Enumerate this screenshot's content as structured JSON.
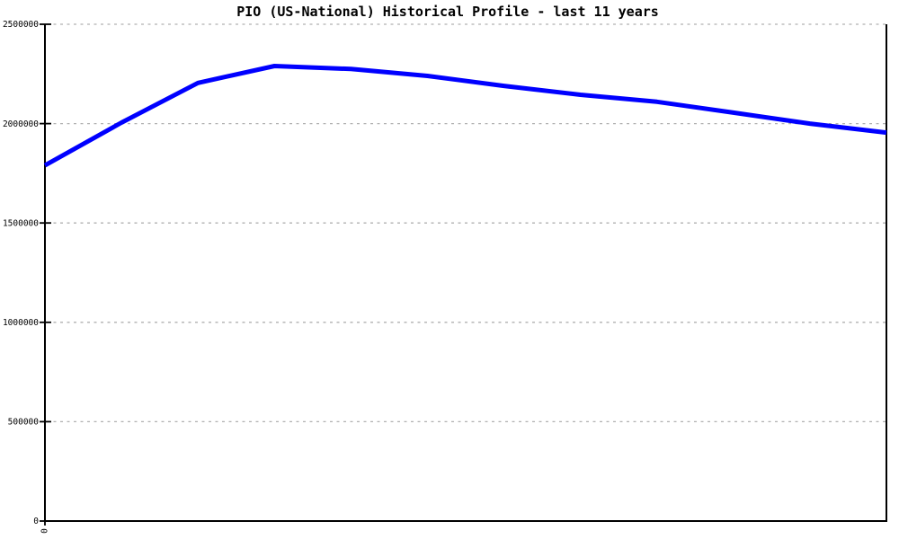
{
  "chart_data": {
    "type": "line",
    "title": "PIO (US-National) Historical Profile - last 11 years",
    "xlabel": "",
    "ylabel": "",
    "x": [
      0,
      1,
      2,
      3,
      4,
      5,
      6,
      7,
      8,
      9,
      10,
      11
    ],
    "series": [
      {
        "name": "PIO (US-National)",
        "color": "#0000ff",
        "values": [
          1790000,
          2005000,
          2205000,
          2290000,
          2275000,
          2240000,
          2190000,
          2145000,
          2110000,
          2055000,
          2000000,
          1955000
        ]
      }
    ],
    "xlim": [
      0,
      11
    ],
    "ylim": [
      0,
      2500000
    ],
    "yticks": [
      0,
      500000,
      1000000,
      1500000,
      2000000,
      2500000
    ],
    "ytick_labels": [
      "0",
      "500000",
      "1000000",
      "1500000",
      "2000000",
      "2500000"
    ],
    "xticks": [
      0
    ],
    "xtick_labels": [
      "0"
    ],
    "xtick_rotation_deg": 90,
    "legend": "none",
    "grid": {
      "horizontal": true,
      "style": "dashed",
      "color": "#b0b0b0"
    },
    "axis_color": "#000000",
    "line_width": 5
  }
}
